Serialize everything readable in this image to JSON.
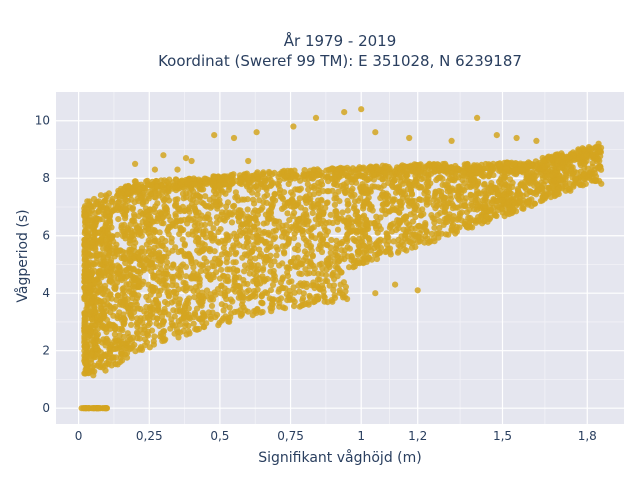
{
  "chart_data": {
    "type": "scatter",
    "title_line1": "År 1979 - 2019",
    "title_line2": "Koordinat (Sweref 99 TM): E 351028, N 6239187",
    "xlabel": "Signifikant våghöjd (m)",
    "ylabel": "Vågperiod (s)",
    "xlim": [
      -0.08,
      1.93
    ],
    "ylim": [
      -0.55,
      11.0
    ],
    "x_ticks": [
      0,
      0.25,
      0.5,
      0.75,
      1,
      1.2,
      1.5,
      1.8
    ],
    "x_tick_labels": [
      "0",
      "0,25",
      "0,5",
      "0,75",
      "1",
      "1,2",
      "1,5",
      "1,8"
    ],
    "y_ticks": [
      0,
      2,
      4,
      6,
      8,
      10
    ],
    "y_tick_labels": [
      "0",
      "2",
      "4",
      "6",
      "8",
      "10"
    ],
    "grid": true,
    "marker_color": "#d4a520",
    "background_color": "#e5e6ef",
    "series": [
      {
        "envelope": {
          "lower": [
            [
              0.02,
              1.1
            ],
            [
              0.1,
              1.2
            ],
            [
              0.2,
              1.9
            ],
            [
              0.3,
              2.3
            ],
            [
              0.4,
              2.6
            ],
            [
              0.5,
              2.9
            ],
            [
              0.6,
              3.2
            ],
            [
              0.7,
              3.4
            ],
            [
              0.8,
              3.55
            ],
            [
              0.9,
              3.7
            ],
            [
              0.95,
              3.8
            ]
          ],
          "upper": [
            [
              0.02,
              7.2
            ],
            [
              0.1,
              7.5
            ],
            [
              0.2,
              7.9
            ],
            [
              0.4,
              8.0
            ],
            [
              0.6,
              8.2
            ],
            [
              0.8,
              8.3
            ],
            [
              1.0,
              8.4
            ],
            [
              1.2,
              8.5
            ],
            [
              1.4,
              8.5
            ],
            [
              1.6,
              8.6
            ],
            [
              1.8,
              9.1
            ]
          ],
          "lower_high_branch": [
            [
              0.95,
              4.8
            ],
            [
              1.0,
              5.0
            ],
            [
              1.2,
              5.6
            ],
            [
              1.4,
              6.3
            ],
            [
              1.6,
              7.0
            ],
            [
              1.8,
              7.8
            ]
          ]
        },
        "zero_period_points_x_range": [
          0.01,
          0.1
        ],
        "outliers": [
          [
            1.0,
            10.4
          ],
          [
            0.94,
            10.3
          ],
          [
            0.84,
            10.1
          ],
          [
            1.41,
            10.1
          ],
          [
            0.76,
            9.8
          ],
          [
            0.63,
            9.6
          ],
          [
            0.48,
            9.5
          ],
          [
            0.55,
            9.4
          ],
          [
            1.05,
            9.6
          ],
          [
            1.17,
            9.4
          ],
          [
            1.32,
            9.3
          ],
          [
            1.48,
            9.5
          ],
          [
            1.55,
            9.4
          ],
          [
            1.62,
            9.3
          ],
          [
            1.84,
            9.2
          ],
          [
            0.3,
            8.8
          ],
          [
            0.38,
            8.7
          ],
          [
            0.2,
            8.5
          ],
          [
            0.4,
            8.6
          ],
          [
            0.6,
            8.6
          ],
          [
            1.75,
            8.9
          ],
          [
            1.82,
            8.8
          ],
          [
            1.71,
            8.4
          ],
          [
            1.79,
            8.5
          ],
          [
            1.2,
            4.1
          ],
          [
            1.05,
            4.0
          ],
          [
            0.95,
            3.8
          ],
          [
            1.12,
            4.3
          ],
          [
            0.35,
            8.3
          ],
          [
            0.27,
            8.3
          ]
        ]
      }
    ]
  }
}
